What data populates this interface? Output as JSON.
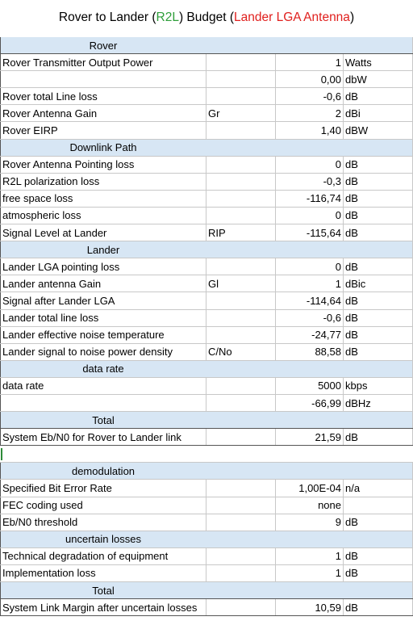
{
  "title": {
    "part1": "Rover to Lander (",
    "part2": "R2L",
    "part3": ") Budget (",
    "part4": "Lander LGA Antenna",
    "part5": ")"
  },
  "rows": [
    {
      "kind": "section",
      "label": "Rover"
    },
    {
      "kind": "data",
      "name": "Rover Transmitter Output Power",
      "sym": "",
      "val": "1",
      "unit": "Watts"
    },
    {
      "kind": "data",
      "name": "",
      "sym": "",
      "val": "0,00",
      "unit": "dbW"
    },
    {
      "kind": "data",
      "name": "Rover total Line loss",
      "sym": "",
      "val": "-0,6",
      "unit": "dB"
    },
    {
      "kind": "data",
      "name": "Rover Antenna Gain",
      "sym": "Gr",
      "val": "2",
      "unit": "dBi"
    },
    {
      "kind": "data",
      "name": "Rover EIRP",
      "sym": "",
      "val": "1,40",
      "unit": "dBW"
    },
    {
      "kind": "section",
      "label": "Downlink Path"
    },
    {
      "kind": "data",
      "name": "Rover Antenna Pointing loss",
      "sym": "",
      "val": "0",
      "unit": "dB"
    },
    {
      "kind": "data",
      "name": "R2L polarization loss",
      "sym": "",
      "val": "-0,3",
      "unit": "dB"
    },
    {
      "kind": "data",
      "name": "free space loss",
      "sym": "",
      "val": "-116,74",
      "unit": "dB"
    },
    {
      "kind": "data",
      "name": "atmospheric loss",
      "sym": "",
      "val": "0",
      "unit": "dB"
    },
    {
      "kind": "data",
      "name": "Signal Level at Lander",
      "sym": "RIP",
      "val": "-115,64",
      "unit": "dB"
    },
    {
      "kind": "section",
      "label": "Lander"
    },
    {
      "kind": "data",
      "name": "Lander LGA pointing loss",
      "sym": "",
      "val": "0",
      "unit": "dB"
    },
    {
      "kind": "data",
      "name": "Lander antenna Gain",
      "sym": "Gl",
      "val": "1",
      "unit": "dBic"
    },
    {
      "kind": "data",
      "name": "Signal after Lander LGA",
      "sym": "",
      "val": "-114,64",
      "unit": "dB"
    },
    {
      "kind": "data",
      "name": "Lander total line loss",
      "sym": "",
      "val": "-0,6",
      "unit": "dB"
    },
    {
      "kind": "data",
      "name": "Lander effective noise temperature",
      "sym": "",
      "val": "-24,77",
      "unit": "dB"
    },
    {
      "kind": "data",
      "name": "Lander signal to noise power density",
      "sym": "C/No",
      "val": "88,58",
      "unit": "dB"
    },
    {
      "kind": "section",
      "label": "data rate"
    },
    {
      "kind": "data",
      "name": "data rate",
      "sym": "",
      "val": "5000",
      "unit": "kbps"
    },
    {
      "kind": "data",
      "name": "",
      "sym": "",
      "val": "-66,99",
      "unit": "dBHz"
    },
    {
      "kind": "section",
      "label": "Total"
    },
    {
      "kind": "data",
      "name": "System Eb/N0 for Rover to Lander link",
      "sym": "",
      "val": "21,59",
      "unit": "dB"
    },
    {
      "kind": "blank"
    },
    {
      "kind": "section",
      "label": "demodulation"
    },
    {
      "kind": "data",
      "name": "Specified Bit Error Rate",
      "sym": "",
      "val": "1,00E-04",
      "unit": "n/a"
    },
    {
      "kind": "data",
      "name": "FEC coding used",
      "sym": "",
      "val": "none",
      "unit": ""
    },
    {
      "kind": "data",
      "name": "Eb/N0 threshold",
      "sym": "",
      "val": "9",
      "unit": "dB"
    },
    {
      "kind": "section",
      "label": "uncertain losses"
    },
    {
      "kind": "data",
      "name": "Technical degradation of equipment",
      "sym": "",
      "val": "1",
      "unit": "dB"
    },
    {
      "kind": "data",
      "name": "Implementation loss",
      "sym": "",
      "val": "1",
      "unit": "dB"
    },
    {
      "kind": "section",
      "label": "Total"
    },
    {
      "kind": "data",
      "name": "System Link Margin after uncertain losses",
      "sym": "",
      "val": "10,59",
      "unit": "dB"
    }
  ]
}
